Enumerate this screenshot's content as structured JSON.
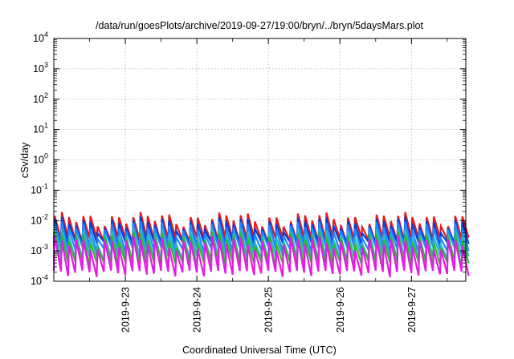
{
  "chart_data": {
    "type": "line",
    "title": "/data/run/goesPlots/archive/2019-09-27/19:00/bryn/../bryn/5daysMars.plot",
    "xlabel": "Coordinated Universal Time (UTC)",
    "ylabel": "cSv/day",
    "y_scale": "log",
    "ylim": [
      0.0001,
      10000
    ],
    "xlim": [
      0,
      5.76
    ],
    "x_ticks": [
      {
        "label": "2019-9-23",
        "value": 1.0
      },
      {
        "label": "2019-9-24",
        "value": 2.0
      },
      {
        "label": "2019-9-25",
        "value": 3.0
      },
      {
        "label": "2019-9-26",
        "value": 4.0
      },
      {
        "label": "2019-9-27",
        "value": 5.0
      }
    ],
    "y_ticks": [
      {
        "base": "10",
        "exp": "-4",
        "value": 0.0001
      },
      {
        "base": "10",
        "exp": "-3",
        "value": 0.001
      },
      {
        "base": "10",
        "exp": "-2",
        "value": 0.01
      },
      {
        "base": "10",
        "exp": "-1",
        "value": 0.1
      },
      {
        "base": "10",
        "exp": "0",
        "value": 1
      },
      {
        "base": "10",
        "exp": "1",
        "value": 10
      },
      {
        "base": "10",
        "exp": "2",
        "value": 100
      },
      {
        "base": "10",
        "exp": "3",
        "value": 1000
      },
      {
        "base": "10",
        "exp": "4",
        "value": 10000
      }
    ],
    "grid": true,
    "legend": "none",
    "sawtooth_period_days": 0.1,
    "series": [
      {
        "color": "#e41a1c",
        "peak": 0.012,
        "trough": 0.0022
      },
      {
        "color": "#0a3fd8",
        "peak": 0.0085,
        "trough": 0.0016
      },
      {
        "color": "#1e88ff",
        "peak": 0.0062,
        "trough": 0.0011
      },
      {
        "color": "#29b6c6",
        "peak": 0.0038,
        "trough": 0.00055
      },
      {
        "color": "#2eb82e",
        "peak": 0.0028,
        "trough": 0.00035
      },
      {
        "color": "#e61ae6",
        "peak": 0.002,
        "trough": 0.00018
      }
    ]
  }
}
